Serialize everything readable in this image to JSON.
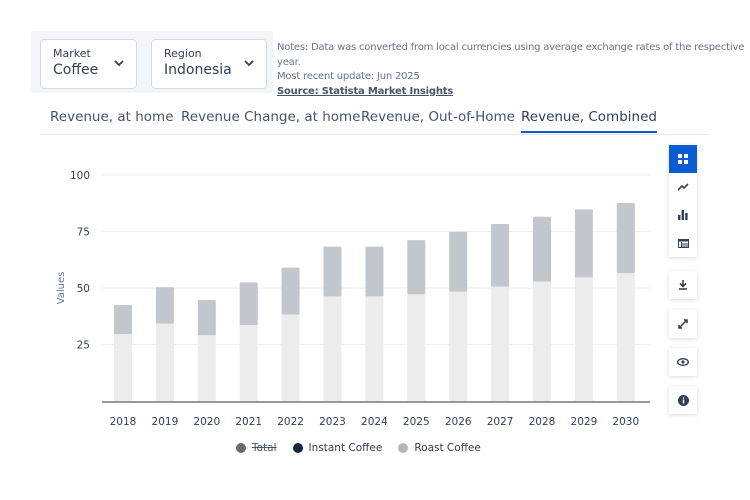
{
  "filters": {
    "market": {
      "label": "Market",
      "value": "Coffee"
    },
    "region": {
      "label": "Region",
      "value": "Indonesia"
    }
  },
  "notes": {
    "line1": "Notes: Data was converted from local currencies using average exchange rates of the respective year.",
    "line2": "Most recent update: Jun 2025",
    "source": "Source: Statista Market Insights"
  },
  "tabs": [
    {
      "label": "Revenue, at home",
      "active": false
    },
    {
      "label": "Revenue Change, at home",
      "active": false
    },
    {
      "label": "Revenue, Out-of-Home",
      "active": false
    },
    {
      "label": "Revenue, Combined",
      "active": true
    }
  ],
  "toolbar": {
    "group": [
      "dashboard-icon",
      "line-chart-icon",
      "bar-chart-icon",
      "table-icon"
    ],
    "singles": [
      "download-icon",
      "expand-icon",
      "eye-icon",
      "info-icon"
    ],
    "accent": "#0b5bd3"
  },
  "chart_data": {
    "type": "bar",
    "stacked": true,
    "ylabel": "Values",
    "xlabel": "",
    "ylim": [
      0,
      100
    ],
    "yticks": [
      25,
      50,
      75,
      100
    ],
    "grid": true,
    "legend_placement": "bottom",
    "categories": [
      "2018",
      "2019",
      "2020",
      "2021",
      "2022",
      "2023",
      "2024",
      "2025",
      "2026",
      "2027",
      "2028",
      "2029",
      "2030"
    ],
    "series": [
      {
        "name": "Total",
        "hidden": true,
        "color": "#6b6b6b",
        "values": [
          42.5,
          50.4,
          44.7,
          52.5,
          59.0,
          68.3,
          68.3,
          71.2,
          74.9,
          78.3,
          81.5,
          84.8,
          87.6
        ]
      },
      {
        "name": "Instant Coffee",
        "color": "#0f2942",
        "bar_color": "#c2c7cd",
        "values": [
          12.9,
          16.1,
          15.6,
          18.9,
          20.8,
          22.0,
          22.0,
          24.0,
          26.5,
          27.7,
          28.7,
          30.1,
          31.1
        ]
      },
      {
        "name": "Roast Coffee",
        "color": "#b5b5b5",
        "bar_color": "#ececec",
        "values": [
          29.6,
          34.3,
          29.1,
          33.6,
          38.2,
          46.3,
          46.3,
          47.2,
          48.4,
          50.6,
          52.8,
          54.7,
          56.5
        ]
      }
    ]
  }
}
